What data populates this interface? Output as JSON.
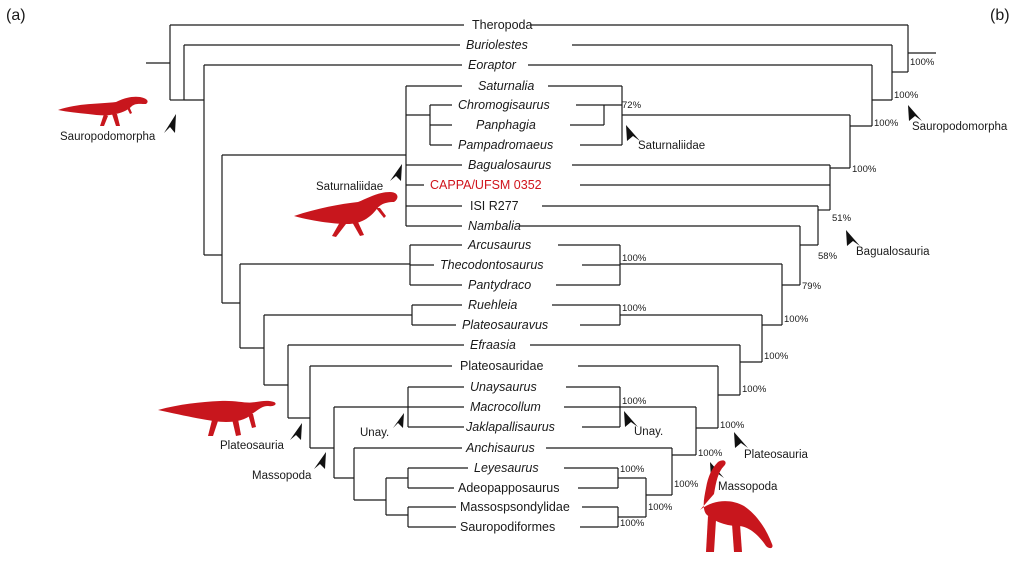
{
  "panels": {
    "left": "(a)",
    "right": "(b)"
  },
  "taxa": [
    {
      "label": "Theropoda",
      "italic": false
    },
    {
      "label": "Buriolestes",
      "italic": true
    },
    {
      "label": "Eoraptor",
      "italic": true
    },
    {
      "label": "Saturnalia",
      "italic": true
    },
    {
      "label": "Chromogisaurus",
      "italic": true
    },
    {
      "label": "Panphagia",
      "italic": true
    },
    {
      "label": "Pampadromaeus",
      "italic": true
    },
    {
      "label": "Bagualosaurus",
      "italic": true
    },
    {
      "label": "CAPPA/UFSM 0352",
      "italic": false,
      "highlight": "#d0141c"
    },
    {
      "label": "ISI R277",
      "italic": false
    },
    {
      "label": "Nambalia",
      "italic": true
    },
    {
      "label": "Arcusaurus",
      "italic": true
    },
    {
      "label": "Thecodontosaurus",
      "italic": true
    },
    {
      "label": "Pantydraco",
      "italic": true
    },
    {
      "label": "Ruehleia",
      "italic": true
    },
    {
      "label": "Plateosauravus",
      "italic": true
    },
    {
      "label": "Efraasia",
      "italic": true
    },
    {
      "label": "Plateosauridae",
      "italic": false
    },
    {
      "label": "Unaysaurus",
      "italic": true
    },
    {
      "label": "Macrocollum",
      "italic": true
    },
    {
      "label": "Jaklapallisaurus",
      "italic": true
    },
    {
      "label": "Anchisaurus",
      "italic": true
    },
    {
      "label": "Leyesaurus",
      "italic": true
    },
    {
      "label": "Adeopapposaurus",
      "italic": false
    },
    {
      "label": "Massospsondylidae",
      "italic": false
    },
    {
      "label": "Sauropodiformes",
      "italic": false
    }
  ],
  "support_values": {
    "saturnaliidae_inner": "72%",
    "thecodontosaurus_clade": "100%",
    "ruehleia_clade": "100%",
    "unaysaurus_clade": "100%",
    "leyesaurus_clade": "100%",
    "massospondylidae_clade": "100%",
    "sauropodiformes_clade": "100%",
    "anchisaurus_clade": "100%",
    "massopoda_b": "100%",
    "plateosauria_b": "100%",
    "plateosauridae_clade": "100%",
    "efraasia_clade": "100%",
    "ruehleia_outer": "100%",
    "thecodontosaurus_outer": "79%",
    "nambalia_clade": "58%",
    "bagualosauria_b": "51%",
    "bagualosaurus_clade": "100%",
    "sauropodomorpha_b": "100%",
    "buriolestes_clade": "100%",
    "root_b": "100%"
  },
  "clade_labels": {
    "sauropodomorpha_a": "Sauropodomorpha",
    "saturnaliidae_a": "Saturnaliidae",
    "plateosauria_a": "Plateosauria",
    "massopoda_a": "Massopoda",
    "unay_a": "Unay.",
    "saturnaliidae_b": "Saturnaliidae",
    "unay_b": "Unay.",
    "sauropodomorpha_b": "Sauropodomorpha",
    "bagualosauria_b": "Bagualosauria",
    "plateosauria_b": "Plateosauria",
    "massopoda_b": "Massopoda"
  },
  "colors": {
    "silhouette": "#c8161d",
    "highlight_taxon": "#d0141c",
    "lines": "#1a1a1a"
  }
}
